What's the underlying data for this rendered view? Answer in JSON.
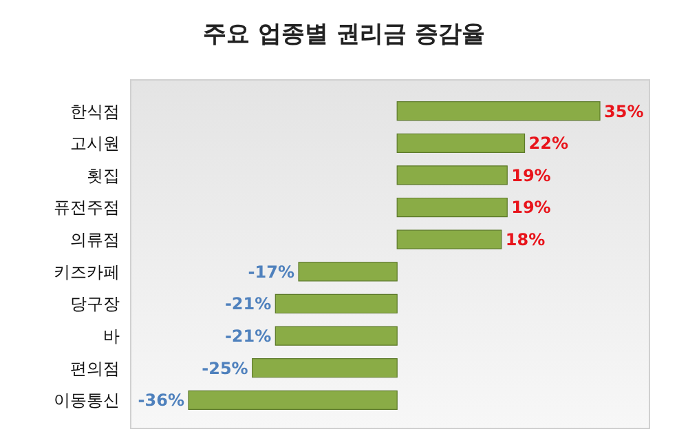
{
  "chart_data": {
    "type": "bar",
    "orientation": "horizontal",
    "title": "주요 업종별 권리금 증감율",
    "categories": [
      "한식점",
      "고시원",
      "횟집",
      "퓨전주점",
      "의류점",
      "키즈카페",
      "당구장",
      "바",
      "편의점",
      "이동통신"
    ],
    "values": [
      35,
      22,
      19,
      19,
      18,
      -17,
      -21,
      -21,
      -25,
      -36
    ],
    "value_labels": [
      "35%",
      "22%",
      "19%",
      "19%",
      "18%",
      "-17%",
      "-21%",
      "-21%",
      "-25%",
      "-36%"
    ],
    "color": "#8aac46"
  }
}
